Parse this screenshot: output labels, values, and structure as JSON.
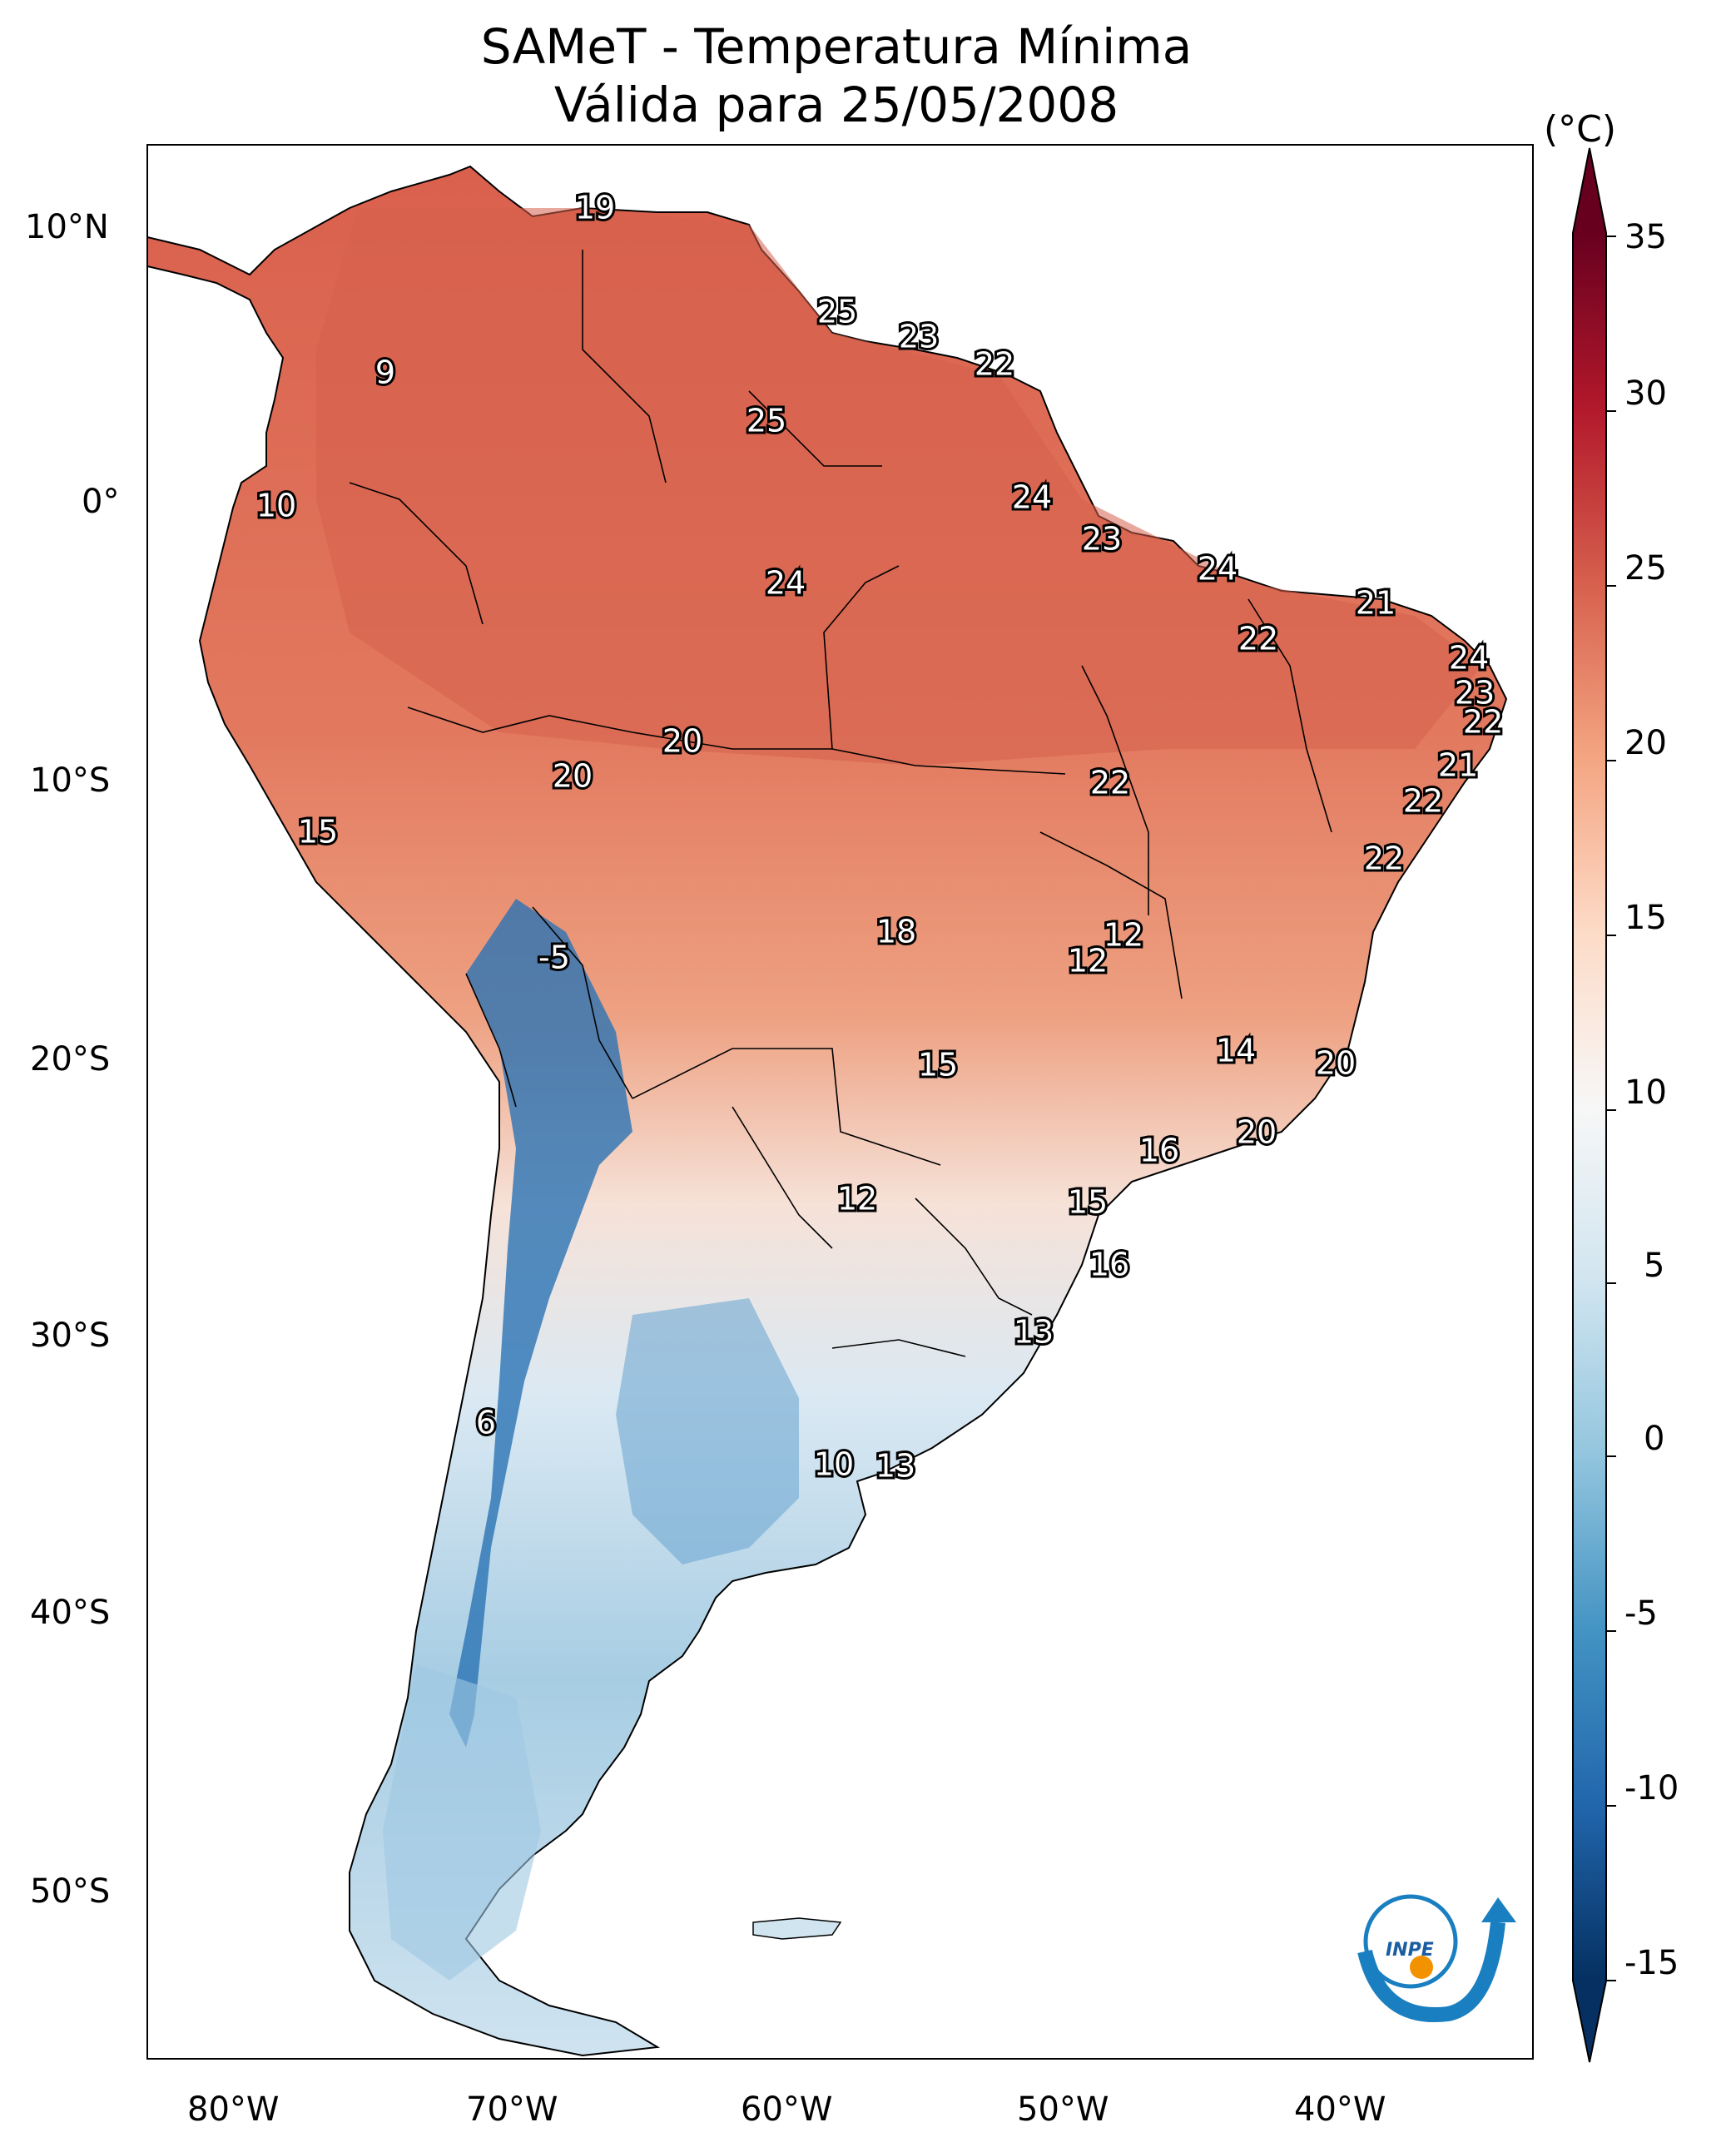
{
  "title": {
    "line1": "SAMeT - Temperatura Mínima",
    "line2": "Válida para 25/05/2008"
  },
  "units": "(°C)",
  "lat_ticks": [
    "10°N",
    "0°",
    "10°S",
    "20°S",
    "30°S",
    "40°S",
    "50°S"
  ],
  "lon_ticks": [
    "80°W",
    "70°W",
    "60°W",
    "50°W",
    "40°W"
  ],
  "colorbar": {
    "ticks": [
      "35",
      "30",
      "25",
      "20",
      "15",
      "10",
      "5",
      "0",
      "-5",
      "-10",
      "-15"
    ],
    "colors": [
      "#053061",
      "#2166ac",
      "#4393c3",
      "#92c5de",
      "#d1e5f0",
      "#f7f7f7",
      "#fddbc7",
      "#f4a582",
      "#d6604d",
      "#b2182b",
      "#67001f"
    ]
  },
  "logo_text": "INPE",
  "map_labels": [
    {
      "text": "19"
    },
    {
      "text": "25"
    },
    {
      "text": "23"
    },
    {
      "text": "22"
    },
    {
      "text": "9"
    },
    {
      "text": "25"
    },
    {
      "text": "10"
    },
    {
      "text": "24"
    },
    {
      "text": "23"
    },
    {
      "text": "24"
    },
    {
      "text": "24"
    },
    {
      "text": "21"
    },
    {
      "text": "22"
    },
    {
      "text": "24"
    },
    {
      "text": "23"
    },
    {
      "text": "22"
    },
    {
      "text": "20"
    },
    {
      "text": "20"
    },
    {
      "text": "21"
    },
    {
      "text": "22"
    },
    {
      "text": "22"
    },
    {
      "text": "15"
    },
    {
      "text": "22"
    },
    {
      "text": "-5"
    },
    {
      "text": "18"
    },
    {
      "text": "12"
    },
    {
      "text": "12"
    },
    {
      "text": "15"
    },
    {
      "text": "14"
    },
    {
      "text": "20"
    },
    {
      "text": "20"
    },
    {
      "text": "16"
    },
    {
      "text": "12"
    },
    {
      "text": "15"
    },
    {
      "text": "16"
    },
    {
      "text": "13"
    },
    {
      "text": "6"
    },
    {
      "text": "10"
    },
    {
      "text": "13"
    }
  ]
}
